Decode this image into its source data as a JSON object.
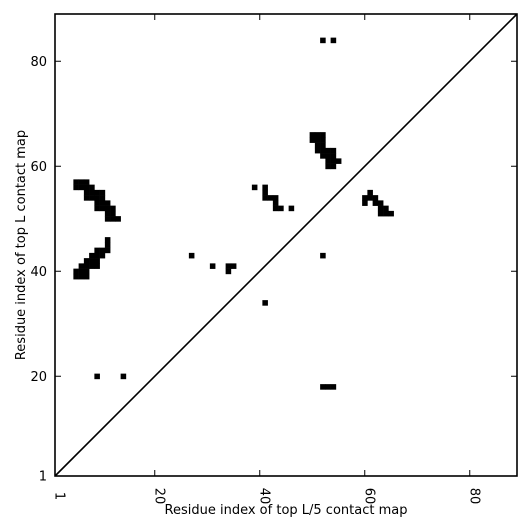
{
  "chart_data": {
    "type": "heatmap",
    "xlabel": "Residue index of top L/5 contact map",
    "ylabel": "Residue index of top L contact map",
    "xlim": [
      1,
      89
    ],
    "ylim": [
      1,
      89
    ],
    "x_ticks": [
      1,
      20,
      40,
      60,
      80
    ],
    "y_ticks": [
      1,
      20,
      40,
      60,
      80
    ],
    "x_tick_labels": [
      "1",
      "20",
      "40",
      "60",
      "80"
    ],
    "y_tick_labels": [
      "1",
      "20",
      "40",
      "60",
      "80"
    ],
    "diagonal": true,
    "grid": false,
    "cell_color": "#000000",
    "upper_triangle_contacts": [
      [
        52,
        84
      ],
      [
        54,
        84
      ],
      [
        50,
        66
      ],
      [
        51,
        66
      ],
      [
        52,
        66
      ],
      [
        50,
        65
      ],
      [
        51,
        65
      ],
      [
        52,
        65
      ],
      [
        51,
        64
      ],
      [
        52,
        64
      ],
      [
        51,
        63
      ],
      [
        52,
        63
      ],
      [
        53,
        63
      ],
      [
        54,
        63
      ],
      [
        52,
        62
      ],
      [
        53,
        62
      ],
      [
        54,
        62
      ],
      [
        53,
        61
      ],
      [
        54,
        61
      ],
      [
        55,
        61
      ],
      [
        53,
        60
      ],
      [
        54,
        60
      ],
      [
        39,
        56
      ],
      [
        41,
        56
      ],
      [
        41,
        55
      ],
      [
        41,
        54
      ],
      [
        42,
        54
      ],
      [
        43,
        54
      ],
      [
        43,
        53
      ],
      [
        43,
        52
      ],
      [
        44,
        52
      ],
      [
        46,
        52
      ],
      [
        52,
        43
      ]
    ],
    "lower_triangle_contacts": [
      [
        5,
        57
      ],
      [
        6,
        57
      ],
      [
        7,
        57
      ],
      [
        5,
        56
      ],
      [
        6,
        56
      ],
      [
        7,
        56
      ],
      [
        8,
        56
      ],
      [
        7,
        55
      ],
      [
        8,
        55
      ],
      [
        9,
        55
      ],
      [
        10,
        55
      ],
      [
        7,
        54
      ],
      [
        8,
        54
      ],
      [
        9,
        54
      ],
      [
        10,
        54
      ],
      [
        9,
        53
      ],
      [
        10,
        53
      ],
      [
        11,
        53
      ],
      [
        9,
        52
      ],
      [
        10,
        52
      ],
      [
        11,
        52
      ],
      [
        12,
        52
      ],
      [
        11,
        51
      ],
      [
        12,
        51
      ],
      [
        11,
        50
      ],
      [
        12,
        50
      ],
      [
        13,
        50
      ],
      [
        11,
        46
      ],
      [
        11,
        45
      ],
      [
        9,
        44
      ],
      [
        10,
        44
      ],
      [
        11,
        44
      ],
      [
        8,
        43
      ],
      [
        9,
        43
      ],
      [
        10,
        43
      ],
      [
        7,
        42
      ],
      [
        8,
        42
      ],
      [
        9,
        42
      ],
      [
        6,
        41
      ],
      [
        7,
        41
      ],
      [
        8,
        41
      ],
      [
        9,
        41
      ],
      [
        5,
        40
      ],
      [
        6,
        40
      ],
      [
        7,
        40
      ],
      [
        5,
        39
      ],
      [
        6,
        39
      ],
      [
        7,
        39
      ],
      [
        27,
        43
      ],
      [
        31,
        41
      ],
      [
        34,
        41
      ],
      [
        35,
        41
      ],
      [
        34,
        40
      ],
      [
        41,
        34
      ],
      [
        9,
        20
      ],
      [
        14,
        20
      ],
      [
        61,
        55
      ],
      [
        60,
        54
      ],
      [
        61,
        54
      ],
      [
        62,
        54
      ],
      [
        60,
        53
      ],
      [
        62,
        53
      ],
      [
        63,
        53
      ],
      [
        63,
        52
      ],
      [
        64,
        52
      ],
      [
        63,
        51
      ],
      [
        64,
        51
      ],
      [
        65,
        51
      ],
      [
        52,
        18
      ],
      [
        53,
        18
      ],
      [
        54,
        18
      ]
    ]
  }
}
